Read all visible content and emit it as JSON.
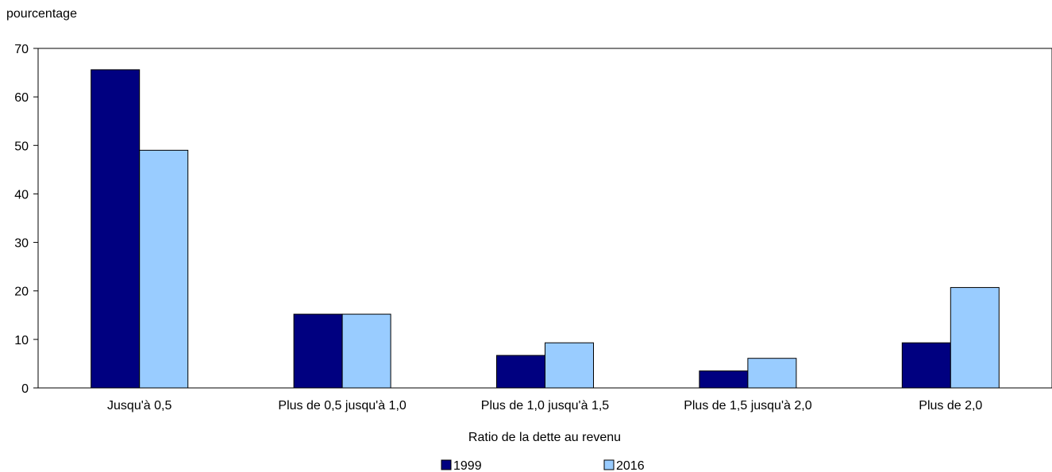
{
  "chart_data": {
    "type": "bar",
    "title": "",
    "ylabel": "pourcentage",
    "xlabel": "Ratio de la dette au revenu",
    "ylim": [
      0,
      70
    ],
    "yticks": [
      0,
      10,
      20,
      30,
      40,
      50,
      60,
      70
    ],
    "categories": [
      "Jusqu'à 0,5",
      "Plus de 0,5 jusqu'à 1,0",
      "Plus de 1,0 jusqu'à 1,5",
      "Plus de 1,5 jusqu'à 2,0",
      "Plus de 2,0"
    ],
    "series": [
      {
        "name": "1999",
        "color": "#000080",
        "values": [
          65.6,
          15.2,
          6.7,
          3.5,
          9.3
        ]
      },
      {
        "name": "2016",
        "color": "#99ccff",
        "values": [
          49.0,
          15.2,
          9.3,
          6.1,
          20.7
        ]
      }
    ],
    "grid": false,
    "legend": "bottom-center"
  }
}
